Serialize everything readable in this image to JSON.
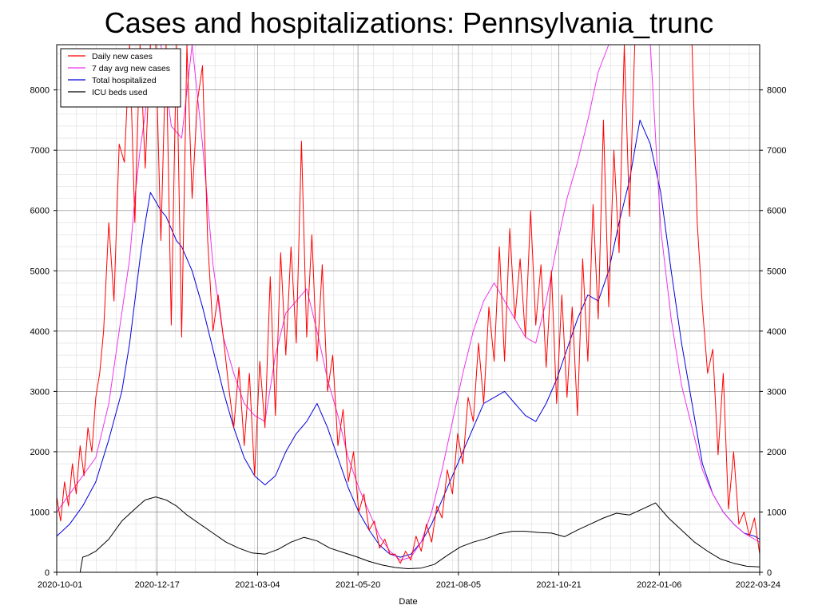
{
  "chart_data": {
    "type": "line",
    "title": "Cases and hospitalizations: Pennsylvania_trunc",
    "xlabel": "Date",
    "ylabel": "",
    "ylim": [
      0,
      8750
    ],
    "yticks": [
      0,
      1000,
      2000,
      3000,
      4000,
      5000,
      6000,
      7000,
      8000
    ],
    "xticks": [
      "2020-10-01",
      "2020-12-17",
      "2021-03-04",
      "2021-05-20",
      "2021-08-05",
      "2021-10-21",
      "2022-01-06",
      "2022-03-24"
    ],
    "x_range_days": [
      0,
      540
    ],
    "legend_position": "top-left",
    "grid": true,
    "series": [
      {
        "name": "Daily new cases",
        "color": "#ff0000",
        "x": [
          0,
          3,
          6,
          9,
          12,
          15,
          18,
          21,
          24,
          27,
          30,
          33,
          36,
          40,
          44,
          48,
          52,
          56,
          60,
          64,
          68,
          72,
          76,
          80,
          84,
          88,
          92,
          96,
          100,
          104,
          108,
          112,
          116,
          120,
          124,
          128,
          132,
          136,
          140,
          144,
          148,
          152,
          156,
          160,
          164,
          168,
          172,
          176,
          180,
          184,
          188,
          192,
          196,
          200,
          204,
          208,
          212,
          216,
          220,
          224,
          228,
          232,
          236,
          240,
          244,
          248,
          252,
          256,
          260,
          264,
          268,
          272,
          276,
          280,
          284,
          288,
          292,
          296,
          300,
          304,
          308,
          312,
          316,
          320,
          324,
          328,
          332,
          336,
          340,
          344,
          348,
          352,
          356,
          360,
          364,
          368,
          372,
          376,
          380,
          384,
          388,
          392,
          396,
          400,
          404,
          408,
          412,
          416,
          420,
          424,
          428,
          432,
          436,
          440,
          444,
          448,
          452,
          456,
          460,
          464,
          468,
          472,
          476,
          480,
          484,
          488,
          492,
          496,
          500,
          504,
          508,
          512,
          516,
          520,
          524,
          528,
          532,
          536,
          540
        ],
        "values": [
          1250,
          850,
          1500,
          1100,
          1800,
          1300,
          2100,
          1600,
          2400,
          2000,
          2900,
          3300,
          4000,
          5800,
          4500,
          7100,
          6800,
          8750,
          5800,
          8750,
          6700,
          8750,
          8750,
          5500,
          8750,
          4100,
          8750,
          3900,
          8750,
          6200,
          7800,
          8400,
          5500,
          4000,
          4600,
          3900,
          3100,
          2400,
          3400,
          2100,
          3300,
          1600,
          3500,
          2400,
          4900,
          2600,
          5300,
          3600,
          5400,
          3800,
          7150,
          3900,
          5600,
          3500,
          5100,
          3000,
          3600,
          2100,
          2700,
          1500,
          2000,
          1000,
          1300,
          700,
          850,
          400,
          550,
          300,
          300,
          150,
          350,
          200,
          600,
          350,
          800,
          500,
          1100,
          900,
          1700,
          1300,
          2300,
          1800,
          2900,
          2500,
          3800,
          2800,
          4400,
          3500,
          5400,
          3500,
          5700,
          4200,
          5200,
          3900,
          6000,
          4100,
          5100,
          3400,
          5000,
          2800,
          4600,
          2900,
          4400,
          2600,
          5200,
          3500,
          6100,
          4200,
          7500,
          4400,
          7000,
          5300,
          8750,
          5900,
          8750,
          8750,
          8750,
          8750,
          8750,
          8750,
          8750,
          8750,
          8750,
          8750,
          8750,
          8750,
          5800,
          4400,
          3300,
          3700,
          1950,
          3300,
          1050,
          2000,
          800,
          1000,
          600,
          900,
          300
        ]
      },
      {
        "name": "7 day avg new cases",
        "color": "#ee33ee",
        "x": [
          0,
          10,
          20,
          30,
          40,
          48,
          56,
          60,
          64,
          68,
          72,
          76,
          80,
          88,
          96,
          104,
          112,
          120,
          128,
          136,
          144,
          152,
          160,
          168,
          176,
          184,
          192,
          200,
          208,
          216,
          224,
          232,
          240,
          248,
          256,
          264,
          272,
          280,
          288,
          296,
          304,
          312,
          320,
          328,
          336,
          344,
          352,
          360,
          368,
          376,
          384,
          392,
          400,
          408,
          416,
          424,
          432,
          440,
          448,
          456,
          464,
          472,
          480,
          488,
          496,
          504,
          512,
          520,
          528,
          536,
          540
        ],
        "values": [
          1000,
          1300,
          1600,
          1900,
          2800,
          4000,
          5200,
          6200,
          7000,
          7600,
          8750,
          8750,
          8750,
          7400,
          7200,
          8750,
          7100,
          5100,
          3900,
          3300,
          2800,
          2600,
          2500,
          3600,
          4300,
          4500,
          4700,
          4000,
          3200,
          2600,
          1900,
          1400,
          1000,
          600,
          350,
          200,
          250,
          500,
          1000,
          1700,
          2500,
          3300,
          4000,
          4500,
          4800,
          4500,
          4200,
          3900,
          3800,
          4500,
          5400,
          6200,
          6800,
          7500,
          8300,
          8750,
          8750,
          8750,
          8750,
          8750,
          5700,
          4200,
          3100,
          2400,
          1700,
          1300,
          1000,
          800,
          650,
          550,
          500
        ]
      },
      {
        "name": "Total hospitalized",
        "color": "#0000dd",
        "x": [
          0,
          10,
          20,
          30,
          40,
          50,
          56,
          60,
          64,
          68,
          72,
          76,
          80,
          84,
          88,
          92,
          96,
          104,
          112,
          120,
          128,
          136,
          144,
          152,
          160,
          168,
          176,
          184,
          192,
          200,
          208,
          216,
          224,
          232,
          240,
          248,
          256,
          264,
          272,
          280,
          288,
          296,
          304,
          312,
          320,
          328,
          336,
          344,
          352,
          360,
          368,
          376,
          384,
          392,
          400,
          408,
          416,
          424,
          432,
          440,
          448,
          456,
          464,
          472,
          480,
          488,
          496,
          504,
          512,
          520,
          528,
          536,
          540
        ],
        "values": [
          600,
          800,
          1100,
          1500,
          2200,
          3000,
          3800,
          4500,
          5200,
          5800,
          6300,
          6150,
          6000,
          5900,
          5700,
          5500,
          5400,
          5000,
          4400,
          3700,
          3000,
          2400,
          1900,
          1600,
          1450,
          1600,
          2000,
          2300,
          2500,
          2800,
          2400,
          1900,
          1400,
          1000,
          700,
          450,
          300,
          250,
          300,
          500,
          800,
          1200,
          1600,
          2000,
          2400,
          2800,
          2900,
          3000,
          2800,
          2600,
          2500,
          2800,
          3200,
          3700,
          4200,
          4600,
          4500,
          5000,
          5800,
          6500,
          7500,
          7100,
          6300,
          5000,
          3800,
          2800,
          1800,
          1300,
          1000,
          800,
          650,
          600,
          550
        ]
      },
      {
        "name": "ICU beds used",
        "color": "#000000",
        "x": [
          0,
          12,
          18,
          20,
          24,
          30,
          40,
          50,
          60,
          68,
          76,
          84,
          92,
          100,
          110,
          120,
          130,
          140,
          150,
          160,
          170,
          180,
          190,
          200,
          210,
          220,
          230,
          240,
          250,
          260,
          270,
          280,
          290,
          300,
          310,
          320,
          330,
          340,
          350,
          360,
          370,
          380,
          390,
          400,
          410,
          420,
          430,
          440,
          450,
          460,
          470,
          480,
          490,
          500,
          510,
          520,
          530,
          540
        ],
        "values": [
          0,
          0,
          0,
          250,
          280,
          350,
          550,
          850,
          1050,
          1200,
          1250,
          1200,
          1100,
          950,
          800,
          650,
          500,
          400,
          320,
          300,
          380,
          500,
          580,
          520,
          400,
          330,
          260,
          180,
          120,
          80,
          60,
          70,
          130,
          280,
          420,
          500,
          560,
          640,
          680,
          680,
          660,
          650,
          590,
          700,
          800,
          900,
          980,
          950,
          1050,
          1150,
          900,
          700,
          500,
          350,
          220,
          150,
          100,
          90
        ]
      }
    ]
  }
}
